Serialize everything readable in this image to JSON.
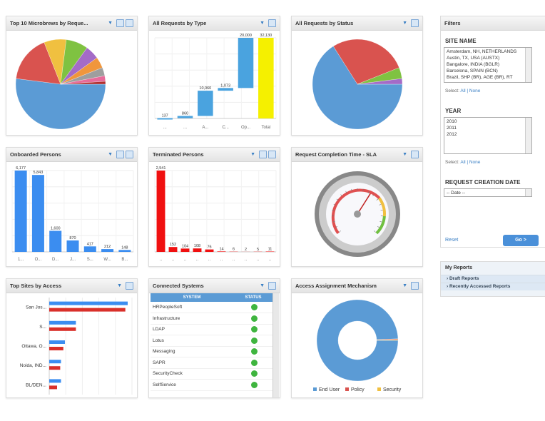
{
  "panels": {
    "top10": {
      "title": "Top 10 Microbrews by Reque...",
      "chart_data": {
        "type": "pie",
        "values": [
          52,
          17,
          8,
          8,
          5,
          4,
          3,
          2,
          1
        ],
        "colors": [
          "#5b9bd5",
          "#d9534f",
          "#f0c040",
          "#7fc241",
          "#a46bc7",
          "#f0963c",
          "#9e9e9e",
          "#e76b9a",
          "#b03030"
        ]
      }
    },
    "byType": {
      "title": "All Requests by Type",
      "chart_data": {
        "type": "bar",
        "subtype": "waterfall",
        "categories": [
          "...",
          "...",
          "A...",
          "C...",
          "Op...",
          "Total"
        ],
        "values": [
          137,
          860,
          10060,
          1073,
          20000,
          32130
        ],
        "labels": [
          "137",
          "860",
          "10,060",
          "1,073",
          "20,000",
          "32,130"
        ],
        "colors": [
          "#4aa3df",
          "#4aa3df",
          "#4aa3df",
          "#4aa3df",
          "#4aa3df",
          "#f5f000"
        ]
      }
    },
    "byStatus": {
      "title": "All Requests by Status",
      "chart_data": {
        "type": "pie",
        "values": [
          66,
          28,
          4,
          2
        ],
        "colors": [
          "#5b9bd5",
          "#d9534f",
          "#7fc241",
          "#a46bc7"
        ]
      }
    },
    "onboarded": {
      "title": "Onboarded Persons",
      "chart_data": {
        "type": "bar",
        "categories": [
          "1...",
          "O...",
          "D...",
          "J...",
          "S...",
          "W...",
          "B..."
        ],
        "values": [
          6177,
          5843,
          1600,
          870,
          417,
          212,
          148
        ],
        "labels": [
          "6,177",
          "5,843",
          "1,600",
          "870",
          "417",
          "212",
          "148"
        ],
        "color": "#3b8df0"
      }
    },
    "terminated": {
      "title": "Terminated Persons",
      "chart_data": {
        "type": "bar",
        "categories": [
          "..",
          "..",
          "..",
          "..",
          "..",
          "..",
          "..",
          "..",
          "..",
          ".."
        ],
        "values": [
          2541,
          152,
          104,
          108,
          76,
          14,
          6,
          2,
          5,
          11
        ],
        "labels": [
          "2,541",
          "152",
          "104",
          "108",
          "76",
          "14",
          "6",
          "2",
          "5",
          "11"
        ],
        "color": "#f01010"
      }
    },
    "sla": {
      "title": "Request Completion Time - SLA",
      "gauge_value": 0.62
    },
    "topSites": {
      "title": "Top Sites by Access",
      "chart_data": {
        "type": "bar",
        "orientation": "horizontal",
        "categories": [
          "San Jos...",
          "S...",
          "Ottawa, O...",
          "Noida, IND...",
          "BL/DEN..."
        ],
        "series": [
          {
            "values": [
              100,
              34,
              20,
              15,
              15
            ],
            "color": "#3b8df0"
          },
          {
            "values": [
              97,
              34,
              18,
              14,
              10
            ],
            "color": "#d9302a"
          }
        ]
      }
    },
    "systems": {
      "title": "Connected Systems",
      "columns": [
        "SYSTEM",
        "STATUS"
      ],
      "rows": [
        "HRPeopleSoft",
        "Infrastructure",
        "LDAP",
        "Lotus",
        "Messaging",
        "SAPR",
        "SecurityCheck",
        "SelfService"
      ],
      "status_color": "#3fb53f"
    },
    "mechanism": {
      "title": "Access Assignment Mechanism",
      "chart_data": {
        "type": "pie",
        "subtype": "donut",
        "values": [
          99.4,
          0.3,
          0.3
        ],
        "colors": [
          "#5b9bd5",
          "#d9534f",
          "#f0c040"
        ],
        "legend": [
          "End User",
          "Policy",
          "Security"
        ],
        "legend_position": "bottom"
      }
    }
  },
  "filters": {
    "title": "Filters",
    "site_label": "SITE NAME",
    "sites": [
      "Amsterdam, NH, NETHERLANDS",
      "Austin, TX, USA (AUSTX)",
      "Bangalore, INDIA (BGLR)",
      "Barcelona, SPAIN (BCN)",
      "Brazil, SHP (BR), AGE (BR), RT"
    ],
    "select": "Select:",
    "all_none": "All | None",
    "year_label": "YEAR",
    "years": [
      "2010",
      "2011",
      "2012"
    ],
    "date_label": "REQUEST CREATION DATE",
    "date_value": "-- Date --",
    "reset": "Reset",
    "go": "Go >"
  },
  "my_reports": {
    "title": "My Reports",
    "items": [
      "Draft Reports",
      "Recently Accessed Reports"
    ]
  }
}
